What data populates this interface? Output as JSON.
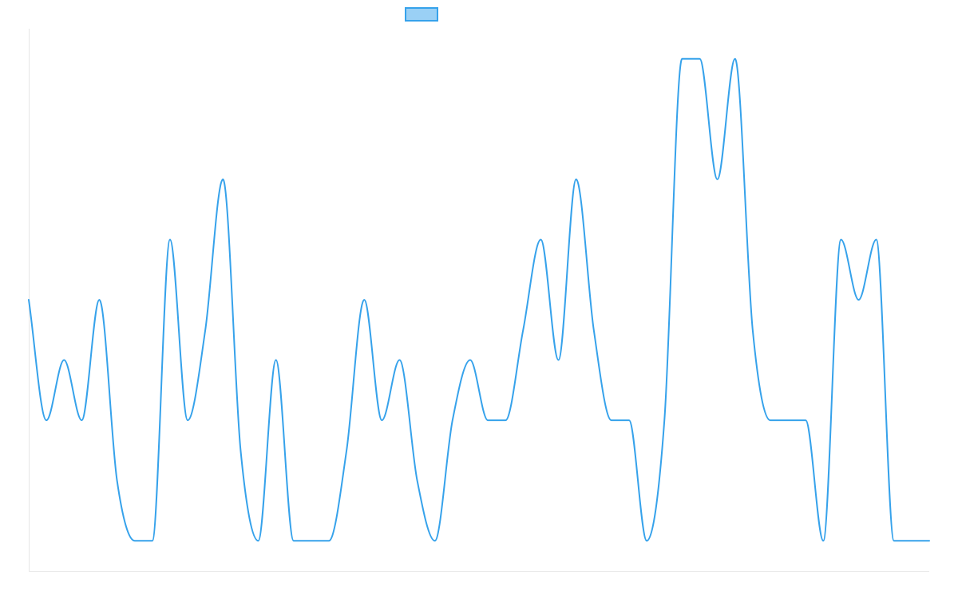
{
  "chart_data": {
    "type": "line",
    "title": "",
    "xlabel": "",
    "ylabel": "",
    "grid": false,
    "legend_position": "top-center",
    "x": [
      0,
      1,
      2,
      3,
      4,
      5,
      6,
      7,
      8,
      9,
      10,
      11,
      12,
      13,
      14,
      15,
      16,
      17,
      18,
      19,
      20,
      21,
      22,
      23,
      24,
      25,
      26,
      27,
      28,
      29,
      30,
      31,
      32,
      33,
      34,
      35,
      36,
      37,
      38,
      39,
      40,
      41,
      42,
      43,
      44,
      45,
      46,
      47,
      48,
      49,
      50,
      51
    ],
    "ylim": [
      -4,
      14
    ],
    "series": [
      {
        "name": "",
        "color": "#36a2eb",
        "fill": "#9ad0f5",
        "values": [
          5,
          1,
          3,
          1,
          5,
          -1,
          -3,
          -3,
          7,
          1,
          4,
          9,
          0,
          -3,
          3,
          -3,
          -3,
          -3,
          0,
          5,
          1,
          3,
          -1,
          -3,
          1,
          3,
          1,
          1,
          4,
          7,
          3,
          9,
          4,
          1,
          1,
          -3,
          1,
          13,
          13,
          9,
          13,
          4,
          1,
          1,
          1,
          -3,
          7,
          5,
          7,
          -3,
          -3,
          -3
        ]
      }
    ]
  }
}
